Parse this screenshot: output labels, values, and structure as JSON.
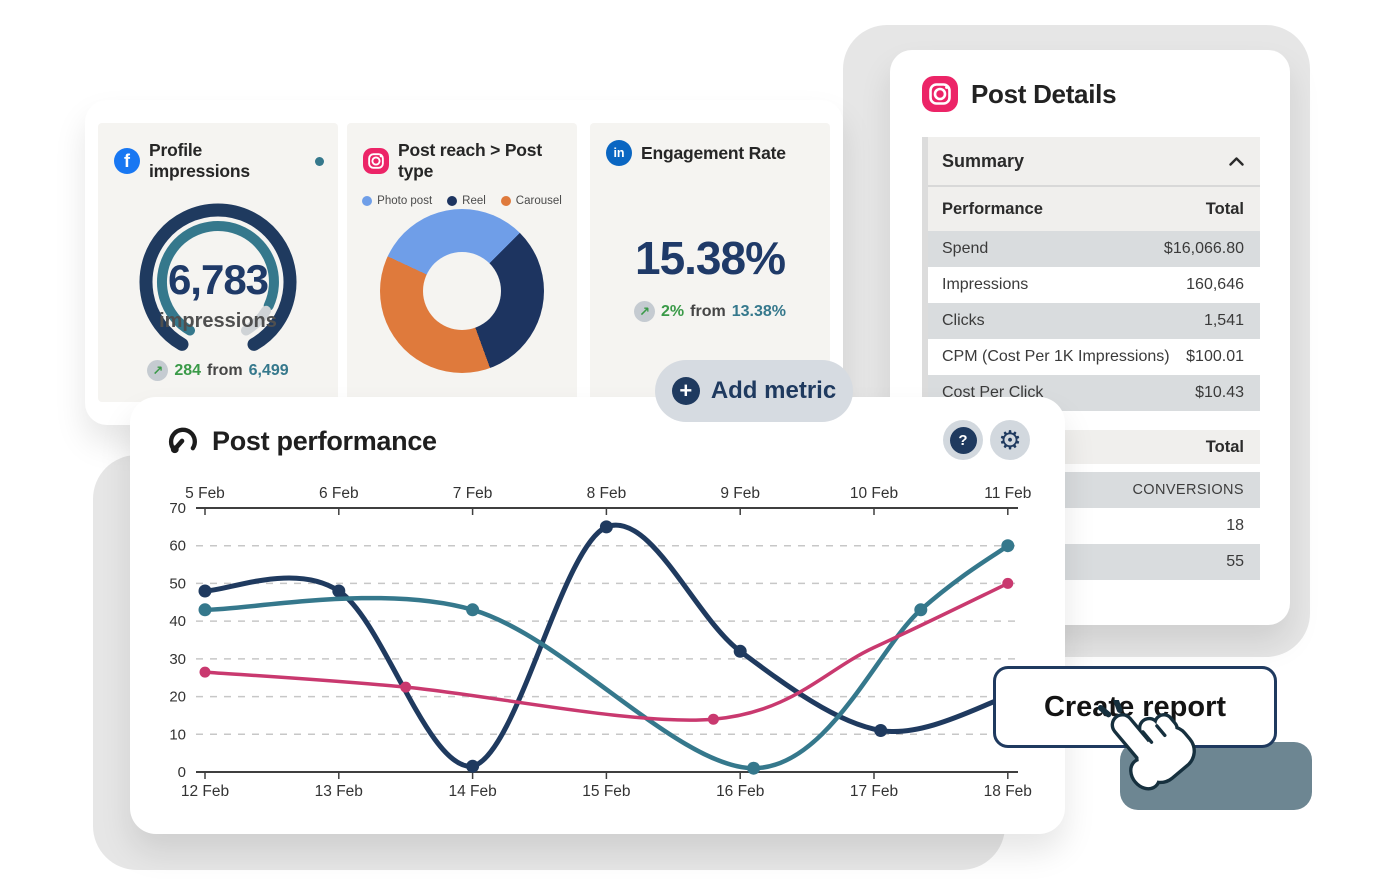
{
  "metrics_card": {
    "profile_impressions": {
      "network": "facebook",
      "title": "Profile impressions",
      "value": "6,783",
      "unit": "impressions",
      "delta_value": "284",
      "delta_conj": "from",
      "delta_prev": "6,499"
    },
    "post_reach": {
      "network": "instagram",
      "title": "Post reach > Post type"
    },
    "engagement_rate": {
      "network": "linkedin",
      "title": "Engagement Rate",
      "value": "15.38%",
      "delta_value": "2%",
      "delta_conj": "from",
      "delta_prev": "13.38%"
    }
  },
  "add_metric_button": {
    "label": "Add metric"
  },
  "post_details_card": {
    "title": "Post Details",
    "summary_section_label": "Summary",
    "performance_table": {
      "headers": [
        "Performance",
        "Total"
      ],
      "rows": [
        [
          "Spend",
          "$16,066.80"
        ],
        [
          "Impressions",
          "160,646"
        ],
        [
          "Clicks",
          "1,541"
        ],
        [
          "CPM (Cost Per 1K Impressions)",
          "$100.01"
        ],
        [
          "Cost Per Click",
          "$10.43"
        ]
      ]
    },
    "conversions_table": {
      "header": "Total",
      "rows": [
        "CONVERSIONS",
        "18",
        "55"
      ]
    }
  },
  "post_performance_card": {
    "title": "Post performance"
  },
  "create_report_button": {
    "label": "Create report"
  },
  "colors": {
    "navy": "#1f3a5f",
    "teal": "#35788c",
    "pink": "#c9396f",
    "light_blue": "#6f9ee8",
    "orange": "#df7a3c",
    "green_positive": "#3a9a48",
    "facebook_blue": "#1877f2",
    "linkedin_blue": "#0a66c2",
    "instagram_pink": "#ec2467",
    "pill_gray": "#d6dbe1",
    "row_gray": "#d9dcde",
    "tile_bg": "#f5f4f1"
  },
  "chart_data": [
    {
      "id": "profile-impressions-gauge",
      "type": "gauge",
      "title": "Profile impressions",
      "value": 6783,
      "unit": "impressions",
      "previous": 6499,
      "delta": 284
    },
    {
      "id": "post-reach-donut",
      "type": "pie",
      "donut": true,
      "title": "Post reach > Post type",
      "start_angle_deg": -65,
      "slices": [
        {
          "label": "Photo post",
          "percent": 30.5,
          "color": "#6f9ee8"
        },
        {
          "label": "Reel",
          "percent": 32.0,
          "color": "#1d3460"
        },
        {
          "label": "Carousel",
          "percent": 37.5,
          "color": "#df7a3c"
        }
      ]
    },
    {
      "id": "engagement-rate-value",
      "type": "single-value",
      "title": "Engagement Rate",
      "value_percent": 15.38,
      "previous_percent": 13.38,
      "delta_percent": 2
    },
    {
      "id": "post-performance-line",
      "type": "line",
      "title": "Post performance",
      "x_axis_top_labels": [
        "5 Feb",
        "6 Feb",
        "7 Feb",
        "8 Feb",
        "9 Feb",
        "10 Feb",
        "11 Feb"
      ],
      "x_axis_bottom_labels": [
        "12 Feb",
        "13 Feb",
        "14 Feb",
        "15 Feb",
        "16 Feb",
        "17 Feb",
        "18 Feb"
      ],
      "ylim": [
        0,
        70
      ],
      "ytick_step": 10,
      "grid": "dashed-horizontal",
      "legend_position": "none",
      "series": [
        {
          "name": "navy",
          "color": "#1f3a5f",
          "width": 5,
          "points": [
            [
              0,
              48
            ],
            [
              1,
              48
            ],
            [
              2,
              1.5
            ],
            [
              3,
              65
            ],
            [
              4,
              32
            ],
            [
              5.05,
              11
            ],
            [
              6,
              20
            ]
          ],
          "markers": [
            0,
            1,
            2,
            3,
            4,
            5
          ],
          "marker_r": 6.5
        },
        {
          "name": "teal",
          "color": "#35788c",
          "width": 4.5,
          "points": [
            [
              0,
              43
            ],
            [
              2,
              43
            ],
            [
              4.1,
              1
            ],
            [
              5.35,
              43
            ],
            [
              6,
              60
            ]
          ],
          "markers": [
            0,
            1,
            2,
            3,
            4
          ],
          "marker_r": 6.5
        },
        {
          "name": "pink",
          "color": "#c9396f",
          "width": 3.5,
          "points": [
            [
              0,
              26.5
            ],
            [
              1.5,
              22.5
            ],
            [
              3.8,
              14
            ],
            [
              5,
              33
            ],
            [
              6,
              50
            ]
          ],
          "markers": [
            0,
            1,
            2,
            4
          ],
          "marker_r": 5.5
        }
      ]
    }
  ]
}
